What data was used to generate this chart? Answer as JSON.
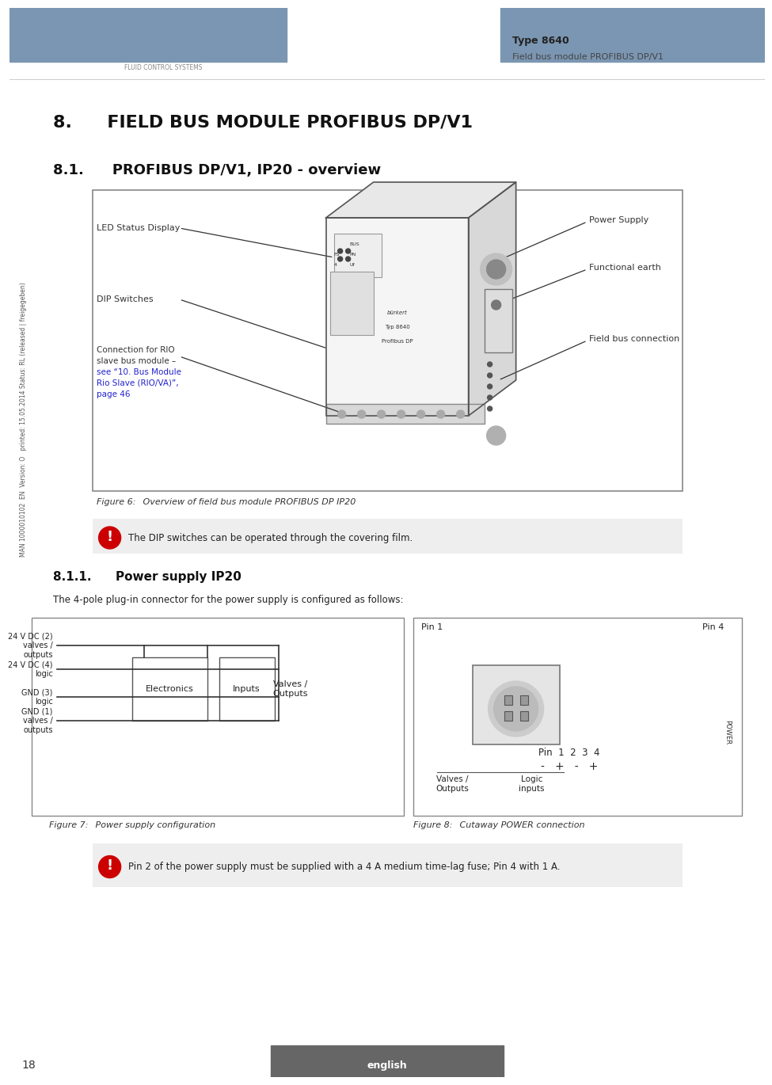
{
  "page_title": "8.  FIELD BUS MODULE PROFIBUS DP/V1",
  "section_title": "8.1.  PROFIBUS DP/V1, IP20 - overview",
  "section2_title": "8.1.1.  Power supply IP20",
  "section2_body": "The 4-pole plug-in connector for the power supply is configured as follows:",
  "type_label": "Type 8640",
  "subtitle_label": "Field bus module PROFIBUS DP/V1",
  "header_color": "#7b96b2",
  "bg_color": "#ffffff",
  "fig6_caption": "Figure 6:    Overview of field bus module PROFIBUS DP IP20",
  "fig7_caption": "Figure 7:    Power supply configuration",
  "fig8_caption": "Figure 8:    Cutaway POWER connection",
  "note1": "The DIP switches can be operated through the covering film.",
  "note2": "Pin 2 of the power supply must be supplied with a 4 A medium time-lag fuse; Pin 4 with 1 A.",
  "power_supply_label": "Power Supply",
  "functional_earth_label": "Functional earth",
  "field_bus_label": "Field bus connection",
  "led_label": "LED Status Display",
  "dip_label": "DIP Switches",
  "rio_label": "Connection for RIO\nslave bus module –\nsee “10. Bus Module\nRio Slave (RIO/VA)”,\npage 46",
  "fig7_labels": [
    "24 V DC (2)\nvalves /\noutputs",
    "24 V DC (4)\nlogic",
    "GND (3)\nlogic",
    "GND (1)\nvalves /\noutputs"
  ],
  "fig7_box_labels": [
    "Electronics",
    "Inputs",
    "Valves /\nOutputs"
  ],
  "fig8_pins": [
    "Pin 1",
    "Pin 4",
    "Pin  1  2  3  4",
    "- + - +",
    "Valves /\nOutputs",
    "Logic\ninputs"
  ],
  "footer_text": "english",
  "page_number": "18",
  "side_text": "MAN 1000010102  EN  Version: O   printed: 15.05.2014 Status: RL (released | freigegeben)"
}
